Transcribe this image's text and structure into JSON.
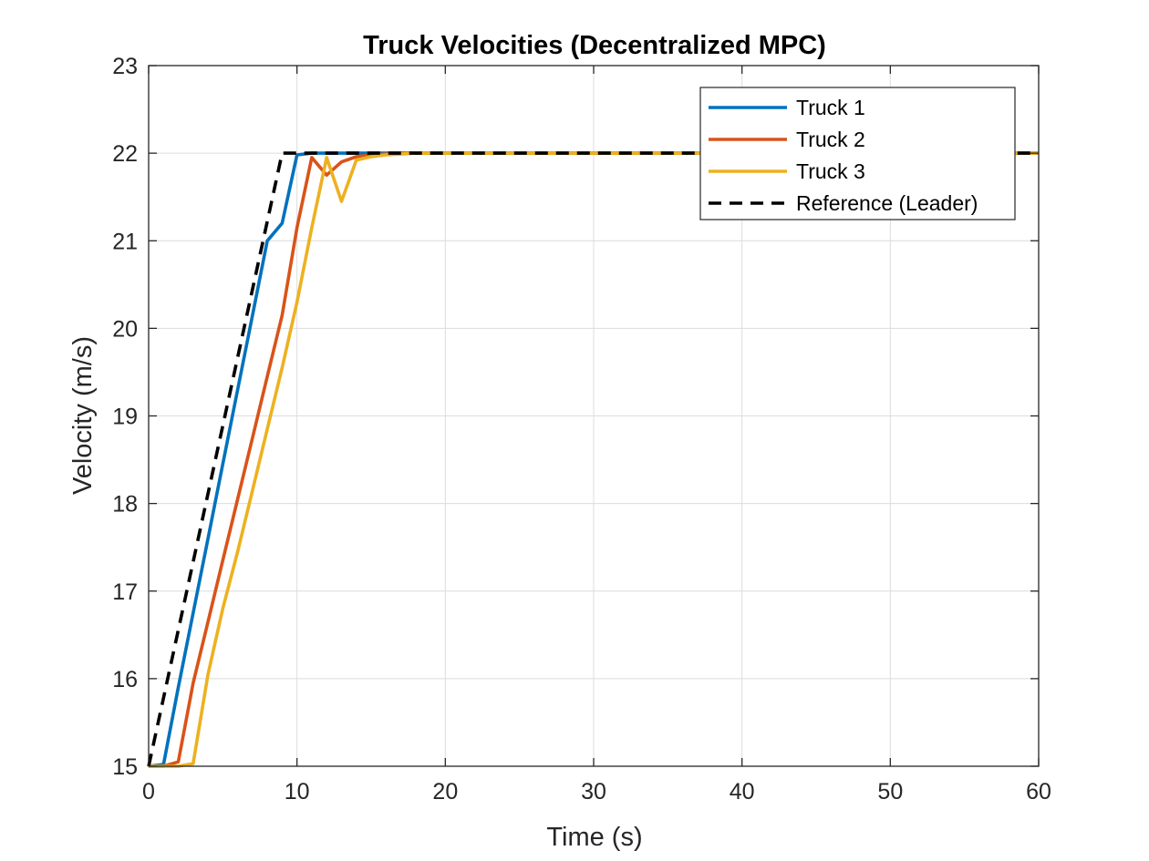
{
  "chart_data": {
    "type": "line",
    "title": "Truck Velocities (Decentralized MPC)",
    "xlabel": "Time (s)",
    "ylabel": "Velocity (m/s)",
    "xlim": [
      0,
      60
    ],
    "ylim": [
      15,
      23
    ],
    "xticks": [
      0,
      10,
      20,
      30,
      40,
      50,
      60
    ],
    "yticks": [
      15,
      16,
      17,
      18,
      19,
      20,
      21,
      22,
      23
    ],
    "grid": true,
    "box": true,
    "legend_position": "top-right",
    "series": [
      {
        "name": "Truck 1",
        "color": "#0072BD",
        "style": "solid",
        "x": [
          0,
          1,
          2,
          3,
          4,
          5,
          6,
          7,
          8,
          9,
          10,
          11,
          12,
          13,
          14,
          15,
          60
        ],
        "y": [
          15,
          15.02,
          15.9,
          16.75,
          17.6,
          18.45,
          19.3,
          20.15,
          21.0,
          21.2,
          21.98,
          22.0,
          22.0,
          22.0,
          22.0,
          22.0,
          22.0
        ]
      },
      {
        "name": "Truck 2",
        "color": "#D95319",
        "style": "solid",
        "x": [
          0,
          1,
          2,
          3,
          4,
          5,
          6,
          7,
          8,
          9,
          10,
          11,
          12,
          13,
          14,
          15,
          16,
          17,
          18,
          60
        ],
        "y": [
          15,
          15.0,
          15.05,
          15.95,
          16.65,
          17.35,
          18.05,
          18.75,
          19.45,
          20.15,
          21.15,
          21.95,
          21.75,
          21.9,
          21.96,
          21.98,
          21.99,
          22.0,
          22.0,
          22.0
        ]
      },
      {
        "name": "Truck 3",
        "color": "#EDB120",
        "style": "solid",
        "x": [
          0,
          1,
          2,
          3,
          4,
          5,
          6,
          7,
          8,
          9,
          10,
          11,
          12,
          13,
          14,
          15,
          16,
          17,
          18,
          60
        ],
        "y": [
          15,
          15.0,
          15.0,
          15.03,
          16.05,
          16.8,
          17.45,
          18.15,
          18.85,
          19.55,
          20.3,
          21.15,
          21.95,
          21.45,
          21.92,
          21.96,
          21.98,
          21.99,
          22.0,
          22.0
        ]
      },
      {
        "name": "Reference (Leader)",
        "color": "#000000",
        "style": "dashed",
        "x": [
          0,
          9,
          60
        ],
        "y": [
          15,
          22,
          22
        ]
      }
    ]
  }
}
